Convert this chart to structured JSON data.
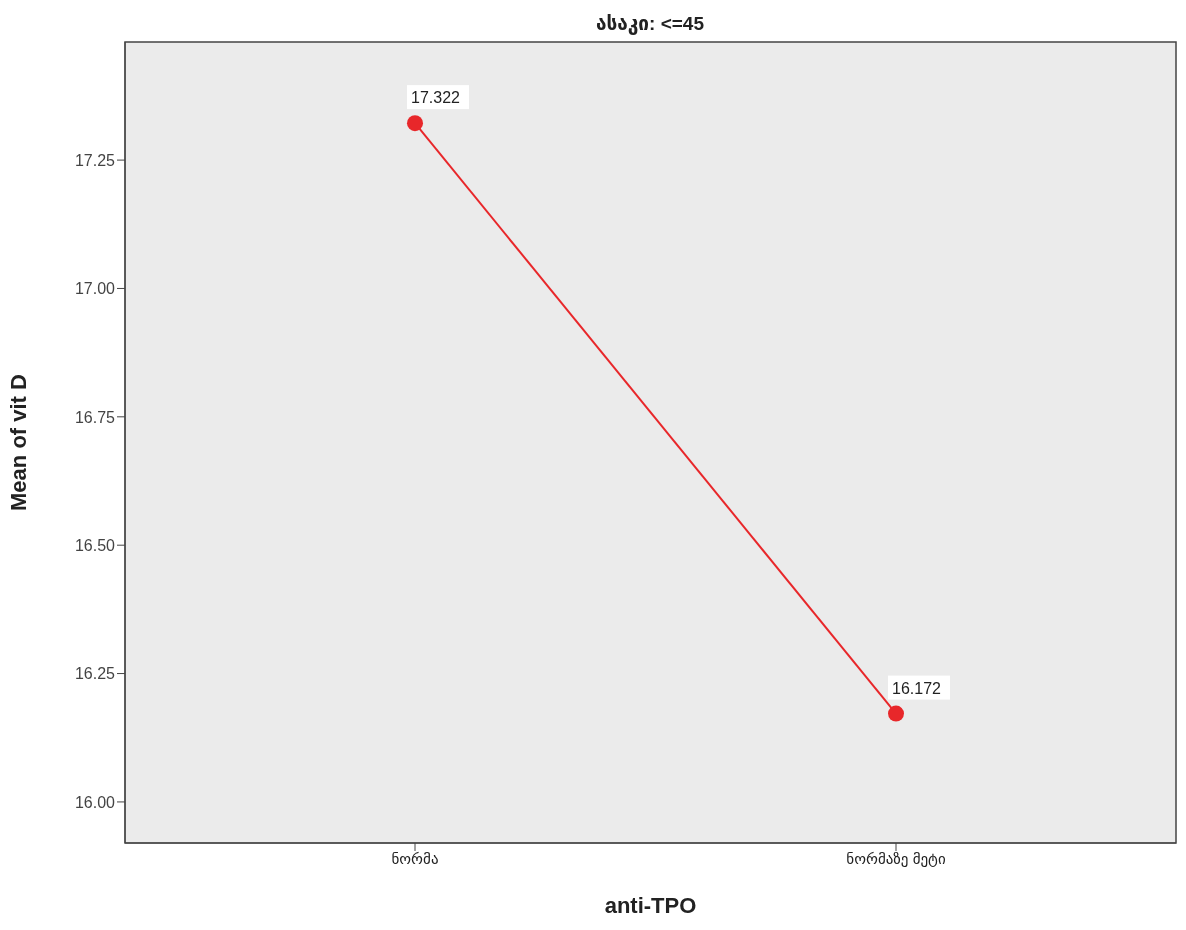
{
  "chart_data": {
    "type": "line",
    "title": "ასაკი: <=45",
    "xlabel": "anti-TPO",
    "ylabel": "Mean of vit D",
    "categories": [
      "ნორმა",
      "ნორმაზე მეტი"
    ],
    "series": [
      {
        "color": "#e8272a",
        "values": [
          17.322,
          16.172
        ]
      }
    ],
    "ylim": [
      15.92,
      17.48
    ],
    "yticks": [
      {
        "value": 16,
        "label": "16.00"
      },
      {
        "value": 16.25,
        "label": "16.25"
      },
      {
        "value": 16.5,
        "label": "16.50"
      },
      {
        "value": 16.75,
        "label": "16.75"
      },
      {
        "value": 17,
        "label": "17.00"
      },
      {
        "value": 17.25,
        "label": "17.25"
      }
    ],
    "data_labels": true,
    "marker": "circle",
    "grid": false
  }
}
